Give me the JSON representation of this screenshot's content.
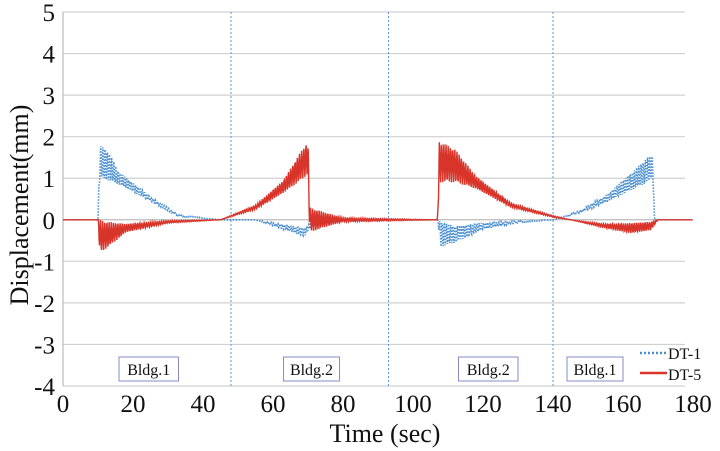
{
  "chart_data": {
    "type": "line",
    "title": "",
    "xlabel": "Time (sec)",
    "ylabel": "Displacement(mm)",
    "xlim": [
      0,
      180
    ],
    "ylim": [
      -4,
      5
    ],
    "xticks": [
      "0",
      "20",
      "40",
      "60",
      "80",
      "100",
      "120",
      "140",
      "160",
      "180"
    ],
    "yticks": [
      "-4",
      "-3",
      "-2",
      "-1",
      "0",
      "1",
      "2",
      "3",
      "4",
      "5"
    ],
    "grid": true,
    "legend_position": "bottom-right",
    "vlines": [
      48,
      93,
      140
    ],
    "annotations": [
      {
        "text": "Bldg.1",
        "x_range": [
          16,
          33
        ]
      },
      {
        "text": "Bldg.2",
        "x_range": [
          63,
          79
        ]
      },
      {
        "text": "Bldg.2",
        "x_range": [
          113,
          130
        ]
      },
      {
        "text": "Bldg.1",
        "x_range": [
          144,
          160
        ]
      }
    ],
    "series": [
      {
        "name": "DT-1",
        "color": "#4a8fd0",
        "style": "dotted",
        "envelope": [
          [
            0,
            0,
            0
          ],
          [
            10,
            0,
            0
          ],
          [
            10.5,
            1.4,
            0.4
          ],
          [
            13,
            1.3,
            0.35
          ],
          [
            16,
            1.0,
            0.15
          ],
          [
            25,
            0.5,
            0.05
          ],
          [
            33,
            0.1,
            0.02
          ],
          [
            45,
            0,
            0
          ],
          [
            55,
            0,
            0
          ],
          [
            62,
            -0.15,
            0.05
          ],
          [
            69,
            -0.3,
            0.1
          ],
          [
            71,
            -0.1,
            0.05
          ],
          [
            80,
            -0.03,
            0
          ],
          [
            95,
            0,
            0
          ],
          [
            107,
            0,
            0
          ],
          [
            108,
            -0.35,
            0.3
          ],
          [
            112,
            -0.35,
            0.2
          ],
          [
            120,
            -0.15,
            0.08
          ],
          [
            130,
            -0.05,
            0.02
          ],
          [
            140,
            0,
            0
          ],
          [
            148,
            0.2,
            0.03
          ],
          [
            155,
            0.5,
            0.08
          ],
          [
            162,
            0.9,
            0.2
          ],
          [
            167,
            1.2,
            0.3
          ],
          [
            168.5,
            1.3,
            0.25
          ],
          [
            169,
            0,
            0
          ],
          [
            180,
            0,
            0
          ]
        ]
      },
      {
        "name": "DT-5",
        "color": "#d8342a",
        "style": "solid",
        "envelope": [
          [
            0,
            0,
            0
          ],
          [
            10,
            0,
            0
          ],
          [
            10.5,
            -0.4,
            0.4
          ],
          [
            13,
            -0.35,
            0.3
          ],
          [
            18,
            -0.2,
            0.1
          ],
          [
            30,
            -0.05,
            0.03
          ],
          [
            45,
            0,
            0
          ],
          [
            55,
            0.3,
            0.05
          ],
          [
            63,
            0.8,
            0.15
          ],
          [
            68,
            1.3,
            0.35
          ],
          [
            70,
            1.5,
            0.4
          ],
          [
            70.5,
            0,
            0.3
          ],
          [
            74,
            0,
            0.2
          ],
          [
            80,
            0,
            0.05
          ],
          [
            107,
            0,
            0
          ],
          [
            107.5,
            1.4,
            0.5
          ],
          [
            112,
            1.3,
            0.4
          ],
          [
            118,
            0.9,
            0.15
          ],
          [
            128,
            0.35,
            0.05
          ],
          [
            140,
            0.08,
            0.02
          ],
          [
            145,
            0,
            0
          ],
          [
            155,
            -0.15,
            0.05
          ],
          [
            162,
            -0.2,
            0.12
          ],
          [
            168,
            -0.15,
            0.1
          ],
          [
            170,
            0,
            0
          ],
          [
            180,
            0,
            0
          ]
        ]
      }
    ]
  }
}
